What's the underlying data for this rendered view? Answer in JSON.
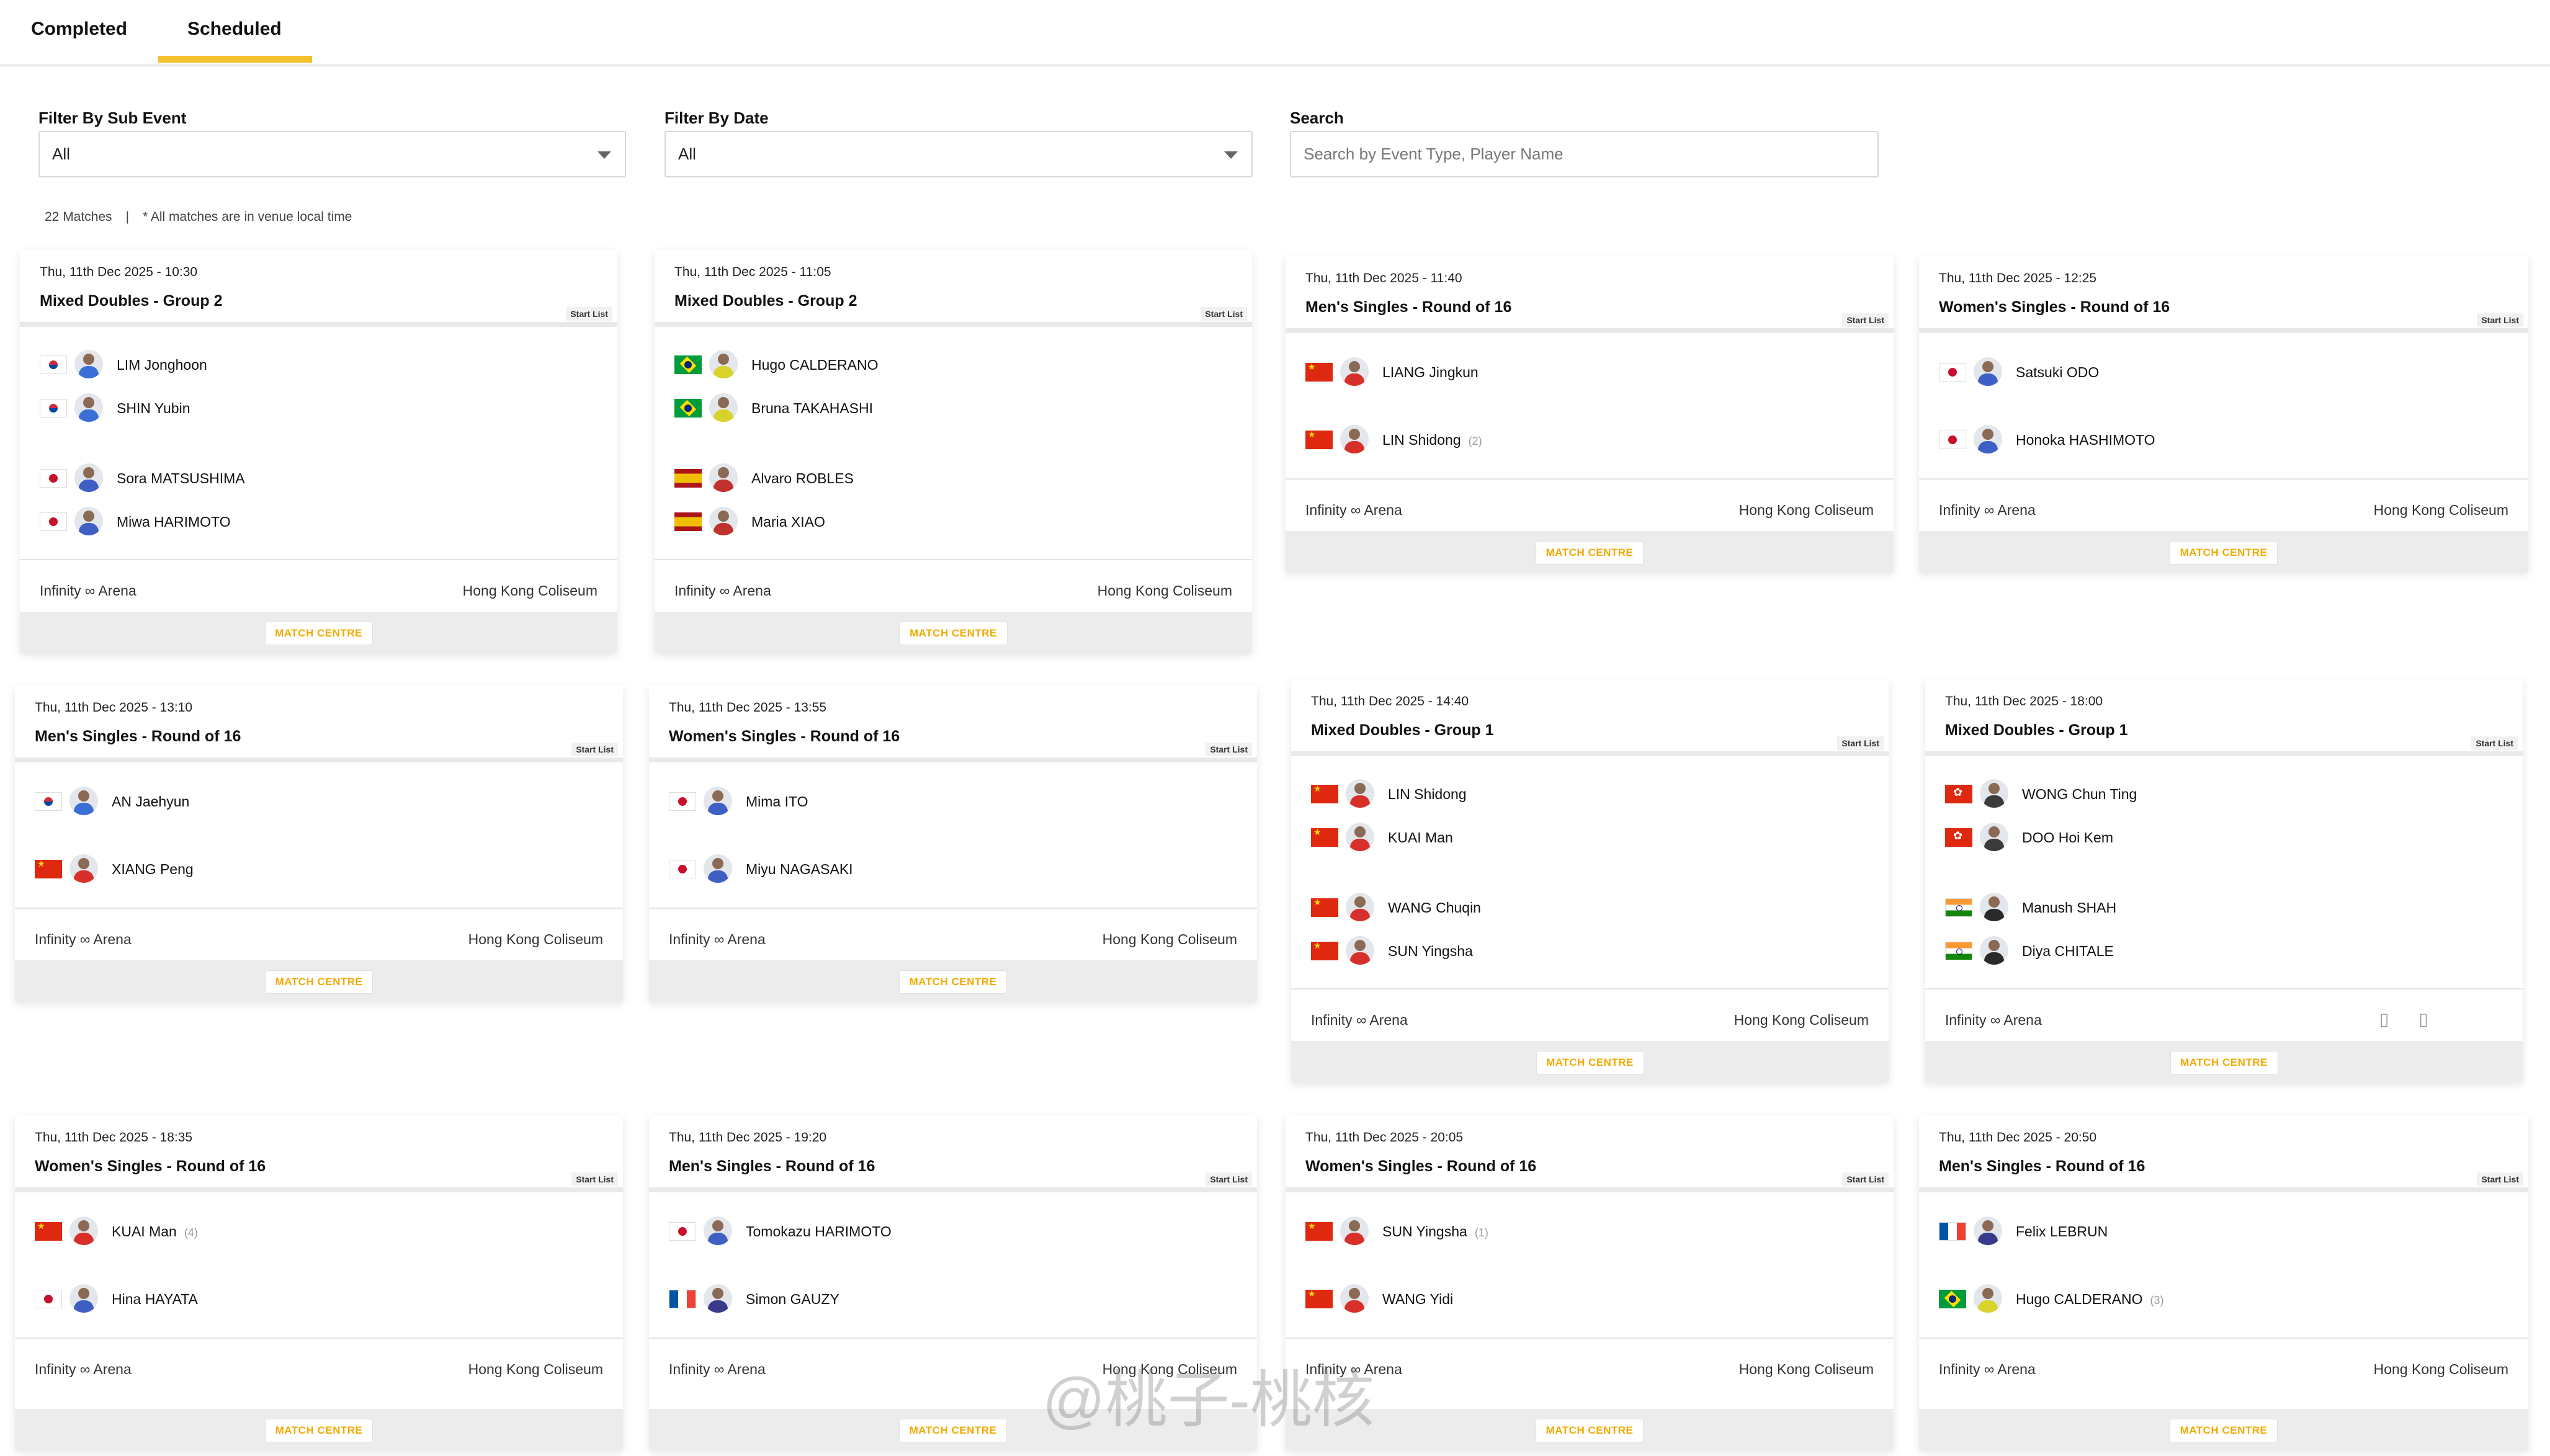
{
  "tabs": [
    {
      "label": "Completed"
    },
    {
      "label": "Scheduled",
      "active": true
    }
  ],
  "filters": {
    "sub_event": {
      "label": "Filter By Sub Event",
      "value": "All"
    },
    "date": {
      "label": "Filter By Date",
      "value": "All"
    },
    "search": {
      "label": "Search",
      "placeholder": "Search by Event Type, Player Name"
    }
  },
  "meta": {
    "count": "22 Matches",
    "separator": "|",
    "note": "* All matches are in venue local time"
  },
  "colors": {
    "accent": "#f2c12e",
    "match_centre": "#f2a900"
  },
  "cards": [
    {
      "date": "Thu, 11th Dec 2025 - 10:30",
      "title": "Mixed Doubles - Group 2",
      "start_list": "Start List",
      "players": [
        {
          "flag": "kr",
          "name": "LIM Jonghoon"
        },
        {
          "flag": "kr",
          "name": "SHIN Yubin"
        },
        {
          "flag": "jp",
          "name": "Sora MATSUSHIMA"
        },
        {
          "flag": "jp",
          "name": "Miwa HARIMOTO"
        }
      ],
      "venue_left": "Infinity ∞ Arena",
      "venue_right": "Hong Kong Coliseum",
      "button": "MATCH CENTRE"
    },
    {
      "date": "Thu, 11th Dec 2025 - 11:05",
      "title": "Mixed Doubles - Group 2",
      "start_list": "Start List",
      "players": [
        {
          "flag": "br",
          "name": "Hugo CALDERANO"
        },
        {
          "flag": "br",
          "name": "Bruna TAKAHASHI"
        },
        {
          "flag": "es",
          "name": "Alvaro ROBLES"
        },
        {
          "flag": "es",
          "name": "Maria XIAO"
        }
      ],
      "venue_left": "Infinity ∞ Arena",
      "venue_right": "Hong Kong Coliseum",
      "button": "MATCH CENTRE"
    },
    {
      "date": "Thu, 11th Dec 2025 - 11:40",
      "title": "Men's Singles - Round of 16",
      "start_list": "Start List",
      "players": [
        {
          "flag": "cn",
          "name": "LIANG Jingkun"
        },
        {
          "flag": "cn",
          "name": "LIN Shidong",
          "seed": "(2)"
        }
      ],
      "venue_left": "Infinity ∞ Arena",
      "venue_right": "Hong Kong Coliseum",
      "button": "MATCH CENTRE"
    },
    {
      "date": "Thu, 11th Dec 2025 - 12:25",
      "title": "Women's Singles - Round of 16",
      "start_list": "Start List",
      "players": [
        {
          "flag": "jp",
          "name": "Satsuki ODO"
        },
        {
          "flag": "jp",
          "name": "Honoka HASHIMOTO"
        }
      ],
      "venue_left": "Infinity ∞ Arena",
      "venue_right": "Hong Kong Coliseum",
      "button": "MATCH CENTRE"
    },
    {
      "date": "Thu, 11th Dec 2025 - 13:10",
      "title": "Men's Singles - Round of 16",
      "start_list": "Start List",
      "players": [
        {
          "flag": "kr",
          "name": "AN Jaehyun"
        },
        {
          "flag": "cn",
          "name": "XIANG Peng"
        }
      ],
      "venue_left": "Infinity ∞ Arena",
      "venue_right": "Hong Kong Coliseum",
      "button": "MATCH CENTRE"
    },
    {
      "date": "Thu, 11th Dec 2025 - 13:55",
      "title": "Women's Singles - Round of 16",
      "start_list": "Start List",
      "players": [
        {
          "flag": "jp",
          "name": "Mima ITO"
        },
        {
          "flag": "jp",
          "name": "Miyu NAGASAKI"
        }
      ],
      "venue_left": "Infinity ∞ Arena",
      "venue_right": "Hong Kong Coliseum",
      "button": "MATCH CENTRE"
    },
    {
      "date": "Thu, 11th Dec 2025 - 14:40",
      "title": "Mixed Doubles - Group 1",
      "start_list": "Start List",
      "players": [
        {
          "flag": "cn",
          "name": "LIN Shidong"
        },
        {
          "flag": "cn",
          "name": "KUAI Man"
        },
        {
          "flag": "cn",
          "name": "WANG Chuqin"
        },
        {
          "flag": "cn",
          "name": "SUN Yingsha"
        }
      ],
      "venue_left": "Infinity ∞ Arena",
      "venue_right": "Hong Kong Coliseum",
      "button": "MATCH CENTRE"
    },
    {
      "date": "Thu, 11th Dec 2025 - 18:00",
      "title": "Mixed Doubles - Group 1",
      "start_list": "Start List",
      "players": [
        {
          "flag": "hk",
          "name": "WONG Chun Ting"
        },
        {
          "flag": "hk",
          "name": "DOO Hoi Kem"
        },
        {
          "flag": "in",
          "name": "Manush SHAH"
        },
        {
          "flag": "in",
          "name": "Diya CHITALE"
        }
      ],
      "venue_left": "Infinity ∞ Arena",
      "venue_right": "",
      "button": "MATCH CENTRE"
    },
    {
      "date": "Thu, 11th Dec 2025 - 18:35",
      "title": "Women's Singles - Round of 16",
      "start_list": "Start List",
      "players": [
        {
          "flag": "cn",
          "name": "KUAI Man",
          "seed": "(4)"
        },
        {
          "flag": "jp",
          "name": "Hina HAYATA"
        }
      ],
      "venue_left": "Infinity ∞ Arena",
      "venue_right": "Hong Kong Coliseum",
      "button": "MATCH CENTRE"
    },
    {
      "date": "Thu, 11th Dec 2025 - 19:20",
      "title": "Men's Singles - Round of 16",
      "start_list": "Start List",
      "players": [
        {
          "flag": "jp",
          "name": "Tomokazu HARIMOTO"
        },
        {
          "flag": "fr",
          "name": "Simon GAUZY"
        }
      ],
      "venue_left": "Infinity ∞ Arena",
      "venue_right": "Hong Kong Coliseum",
      "button": "MATCH CENTRE"
    },
    {
      "date": "Thu, 11th Dec 2025 - 20:05",
      "title": "Women's Singles - Round of 16",
      "start_list": "Start List",
      "players": [
        {
          "flag": "cn",
          "name": "SUN Yingsha",
          "seed": "(1)"
        },
        {
          "flag": "cn",
          "name": "WANG Yidi"
        }
      ],
      "venue_left": "Infinity ∞ Arena",
      "venue_right": "Hong Kong Coliseum",
      "button": "MATCH CENTRE"
    },
    {
      "date": "Thu, 11th Dec 2025 - 20:50",
      "title": "Men's Singles - Round of 16",
      "start_list": "Start List",
      "players": [
        {
          "flag": "fr",
          "name": "Felix LEBRUN"
        },
        {
          "flag": "br",
          "name": "Hugo CALDERANO",
          "seed": "(3)"
        }
      ],
      "venue_left": "Infinity ∞ Arena",
      "venue_right": "Hong Kong Coliseum",
      "button": "MATCH CENTRE"
    }
  ],
  "watermark": "@桃子-桃核"
}
